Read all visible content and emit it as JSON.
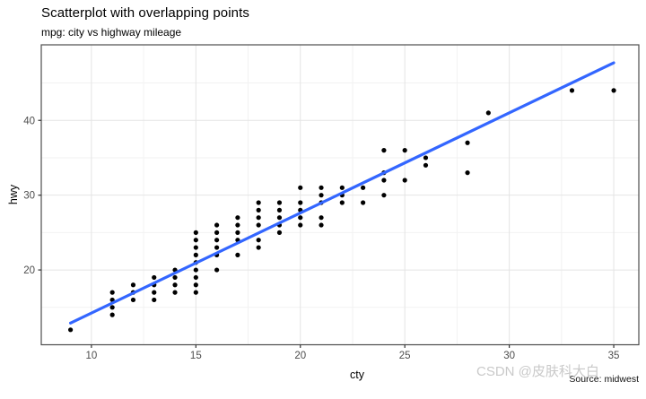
{
  "header": {
    "title": "Scatterplot with overlapping points",
    "subtitle": "mpg: city vs highway mileage"
  },
  "caption": {
    "text": "Source: midwest"
  },
  "watermark": {
    "text": "CSDN @皮肤科大白"
  },
  "colors": {
    "background": "#ffffff",
    "point": "#000000",
    "trend_line": "#3366FF",
    "grid_major": "#e4e4e4",
    "grid_minor": "#f2f2f2",
    "panel_border": "#4d4d4d",
    "tick_mark": "#333333",
    "tick_label": "#4d4d4d",
    "watermark": "#c9c9c9"
  },
  "chart_data": {
    "type": "scatter",
    "title": "Scatterplot with overlapping points",
    "subtitle": "mpg: city vs highway mileage",
    "caption": "Source: midwest",
    "xlabel": "cty",
    "ylabel": "hwy",
    "xlim": [
      7.6,
      36.2
    ],
    "ylim": [
      10,
      50.1
    ],
    "x_ticks": [
      10,
      15,
      20,
      25,
      30,
      35
    ],
    "y_ticks": [
      20,
      30,
      40
    ],
    "x_minor": [
      12.5,
      17.5,
      22.5,
      27.5,
      32.5
    ],
    "y_minor": [
      15,
      25,
      35,
      45
    ],
    "grid": true,
    "legend": "none",
    "points": [
      [
        9,
        12
      ],
      [
        11,
        14
      ],
      [
        11,
        15
      ],
      [
        11,
        16
      ],
      [
        11,
        17
      ],
      [
        12,
        16
      ],
      [
        12,
        17
      ],
      [
        12,
        18
      ],
      [
        13,
        16
      ],
      [
        13,
        17
      ],
      [
        13,
        18
      ],
      [
        13,
        19
      ],
      [
        14,
        17
      ],
      [
        14,
        18
      ],
      [
        14,
        19
      ],
      [
        14,
        20
      ],
      [
        15,
        17
      ],
      [
        15,
        18
      ],
      [
        15,
        19
      ],
      [
        15,
        20
      ],
      [
        15,
        21
      ],
      [
        15,
        22
      ],
      [
        15,
        23
      ],
      [
        15,
        24
      ],
      [
        15,
        25
      ],
      [
        16,
        20
      ],
      [
        16,
        22
      ],
      [
        16,
        23
      ],
      [
        16,
        24
      ],
      [
        16,
        25
      ],
      [
        16,
        26
      ],
      [
        17,
        22
      ],
      [
        17,
        24
      ],
      [
        17,
        25
      ],
      [
        17,
        26
      ],
      [
        17,
        27
      ],
      [
        18,
        23
      ],
      [
        18,
        24
      ],
      [
        18,
        26
      ],
      [
        18,
        27
      ],
      [
        18,
        28
      ],
      [
        18,
        29
      ],
      [
        19,
        25
      ],
      [
        19,
        26
      ],
      [
        19,
        27
      ],
      [
        19,
        28
      ],
      [
        19,
        29
      ],
      [
        20,
        26
      ],
      [
        20,
        27
      ],
      [
        20,
        28
      ],
      [
        20,
        29
      ],
      [
        20,
        31
      ],
      [
        21,
        26
      ],
      [
        21,
        27
      ],
      [
        21,
        29
      ],
      [
        21,
        30
      ],
      [
        21,
        31
      ],
      [
        22,
        29
      ],
      [
        22,
        30
      ],
      [
        22,
        31
      ],
      [
        23,
        29
      ],
      [
        23,
        31
      ],
      [
        24,
        30
      ],
      [
        24,
        32
      ],
      [
        24,
        33
      ],
      [
        24,
        36
      ],
      [
        25,
        32
      ],
      [
        25,
        36
      ],
      [
        26,
        34
      ],
      [
        26,
        35
      ],
      [
        28,
        33
      ],
      [
        28,
        37
      ],
      [
        29,
        41
      ],
      [
        33,
        44
      ],
      [
        35,
        44
      ]
    ],
    "trend_line": {
      "type": "linear",
      "x_start": 9,
      "y_start": 12.9,
      "x_end": 35,
      "y_end": 47.7
    }
  }
}
